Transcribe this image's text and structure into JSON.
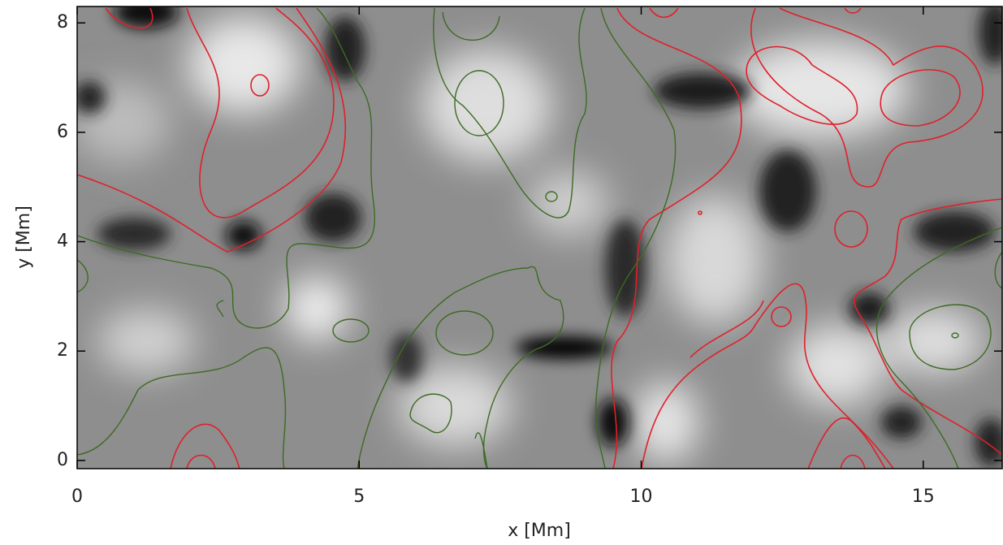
{
  "chart_data": {
    "type": "image",
    "xlabel": "x [Mm]",
    "ylabel": "y [Mm]",
    "xlim": [
      0,
      16.4
    ],
    "ylim": [
      -0.15,
      8.3
    ],
    "xticks": [
      0,
      5,
      10,
      15
    ],
    "yticks": [
      0,
      2,
      4,
      6,
      8
    ]
  }
}
